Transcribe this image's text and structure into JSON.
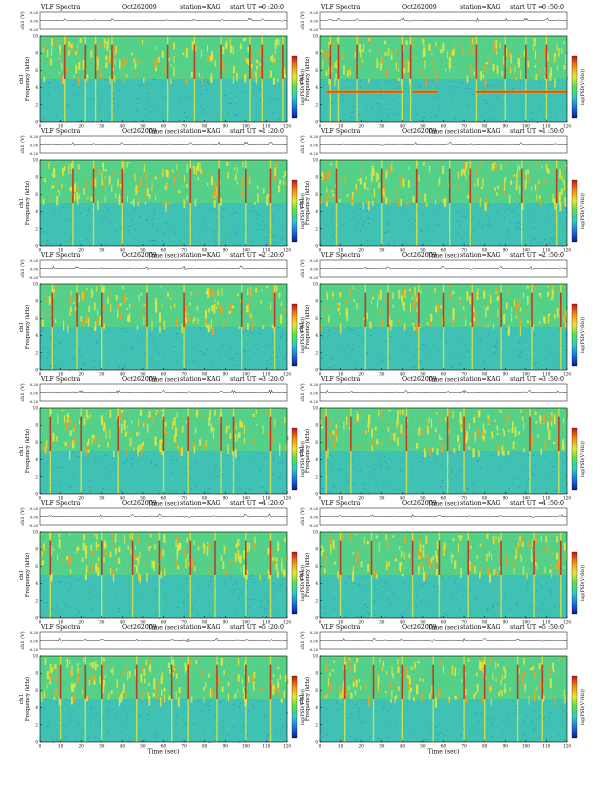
{
  "page": {
    "title_prefix": "VLF Spectra",
    "date": "Oct262009",
    "station": "station=KAG",
    "start_prefix": "start UT ="
  },
  "axis_labels": {
    "time": "Time (sec)",
    "frequency": "Frequency (kHz)",
    "channel": "ch1",
    "amplitude": "ch1 (V)",
    "colorbar": "log(PSD(V²/Hz))"
  },
  "colors": {
    "background_field": "#3fc2b4",
    "speckle_blue": "#2a7fd6",
    "speckle_green": "#5ed47a",
    "band_yellow": "#e6e639",
    "band_orange": "#f0a020",
    "band_red": "#c0201a",
    "colorbar_stops": [
      "#0a1a8a",
      "#1e6ee0",
      "#33c7c7",
      "#55dd55",
      "#e6e639",
      "#f08a1a",
      "#c0141a"
    ]
  },
  "chart_data": [
    {
      "type": "heatmap",
      "start_ut": "0 :20:0",
      "xlim": [
        0,
        120
      ],
      "ylim_khz": [
        0,
        10
      ],
      "amp_ylim_v": [
        -0.2,
        0.2
      ],
      "xticks": [
        0,
        10,
        20,
        30,
        40,
        50,
        60,
        70,
        80,
        90,
        100,
        110,
        120
      ],
      "yticks": [
        0,
        2,
        4,
        6,
        8,
        10
      ],
      "amp_ticks": [
        "0.20",
        "0.00",
        "-0.20"
      ],
      "emission_band_khz": [
        5,
        10
      ],
      "strong_bursts_sec": [
        12,
        22,
        27,
        35,
        62,
        75,
        88,
        102,
        108,
        118
      ],
      "tone_khz": null,
      "tone_sec": []
    },
    {
      "type": "heatmap",
      "start_ut": "0 :50:0",
      "xlim": [
        0,
        120
      ],
      "ylim_khz": [
        0,
        10
      ],
      "amp_ylim_v": [
        -0.2,
        0.2
      ],
      "xticks": [
        0,
        10,
        20,
        30,
        40,
        50,
        60,
        70,
        80,
        90,
        100,
        110,
        120
      ],
      "yticks": [
        0,
        2,
        4,
        6,
        8,
        10
      ],
      "amp_ticks": [
        "0.20",
        "0.00",
        "-0.20"
      ],
      "emission_band_khz": [
        5,
        10
      ],
      "strong_bursts_sec": [
        5,
        9,
        18,
        40,
        44,
        76,
        90,
        100,
        110
      ],
      "tone_khz": 3.5,
      "tone_sec": [
        [
          3,
          40
        ],
        [
          45,
          57
        ],
        [
          76,
          120
        ]
      ]
    },
    {
      "type": "heatmap",
      "start_ut": "1 :20:0",
      "xlim": [
        0,
        120
      ],
      "ylim_khz": [
        0,
        10
      ],
      "amp_ylim_v": [
        -0.2,
        0.2
      ],
      "xticks": [
        0,
        10,
        20,
        30,
        40,
        50,
        60,
        70,
        80,
        90,
        100,
        110,
        120
      ],
      "yticks": [
        0,
        2,
        4,
        6,
        8,
        10
      ],
      "amp_ticks": [
        "0.20",
        "0.00",
        "-0.20"
      ],
      "emission_band_khz": [
        5,
        10
      ],
      "strong_bursts_sec": [
        16,
        26,
        40,
        73,
        87,
        100,
        112
      ],
      "tone_khz": null,
      "tone_sec": []
    },
    {
      "type": "heatmap",
      "start_ut": "1 :50:0",
      "xlim": [
        0,
        120
      ],
      "ylim_khz": [
        0,
        10
      ],
      "amp_ylim_v": [
        -0.2,
        0.2
      ],
      "xticks": [
        0,
        10,
        20,
        30,
        40,
        50,
        60,
        70,
        80,
        90,
        100,
        110,
        120
      ],
      "yticks": [
        0,
        2,
        4,
        6,
        8,
        10
      ],
      "amp_ticks": [
        "0.20",
        "0.00",
        "-0.20"
      ],
      "emission_band_khz": [
        5,
        10
      ],
      "strong_bursts_sec": [
        8,
        30,
        47,
        63,
        73,
        98,
        115
      ],
      "tone_khz": null,
      "tone_sec": []
    },
    {
      "type": "heatmap",
      "start_ut": "2 :20:0",
      "xlim": [
        0,
        120
      ],
      "ylim_khz": [
        0,
        10
      ],
      "amp_ylim_v": [
        -0.2,
        0.2
      ],
      "xticks": [
        0,
        10,
        20,
        30,
        40,
        50,
        60,
        70,
        80,
        90,
        100,
        110,
        120
      ],
      "yticks": [
        0,
        2,
        4,
        6,
        8,
        10
      ],
      "amp_ticks": [
        "0.20",
        "0.00",
        "-0.20"
      ],
      "emission_band_khz": [
        5,
        10
      ],
      "strong_bursts_sec": [
        6,
        18,
        30,
        52,
        70,
        98,
        114
      ],
      "tone_khz": null,
      "tone_sec": []
    },
    {
      "type": "heatmap",
      "start_ut": "2 :50:0",
      "xlim": [
        0,
        120
      ],
      "ylim_khz": [
        0,
        10
      ],
      "amp_ylim_v": [
        -0.2,
        0.2
      ],
      "xticks": [
        0,
        10,
        20,
        30,
        40,
        50,
        60,
        70,
        80,
        90,
        100,
        110,
        120
      ],
      "yticks": [
        0,
        2,
        4,
        6,
        8,
        10
      ],
      "amp_ticks": [
        "0.20",
        "0.00",
        "-0.20"
      ],
      "emission_band_khz": [
        5,
        10
      ],
      "strong_bursts_sec": [
        22,
        33,
        48,
        60,
        74,
        88,
        103,
        117
      ],
      "tone_khz": null,
      "tone_sec": []
    },
    {
      "type": "heatmap",
      "start_ut": "3 :20:0",
      "xlim": [
        0,
        120
      ],
      "ylim_khz": [
        0,
        10
      ],
      "amp_ylim_v": [
        -0.2,
        0.2
      ],
      "xticks": [
        0,
        10,
        20,
        30,
        40,
        50,
        60,
        70,
        80,
        90,
        100,
        110,
        120
      ],
      "yticks": [
        0,
        2,
        4,
        6,
        8,
        10
      ],
      "amp_ticks": [
        "0.20",
        "0.00",
        "-0.20"
      ],
      "emission_band_khz": [
        5,
        10
      ],
      "strong_bursts_sec": [
        5,
        20,
        38,
        60,
        72,
        88,
        94,
        112
      ],
      "tone_khz": null,
      "tone_sec": []
    },
    {
      "type": "heatmap",
      "start_ut": "3 :50:0",
      "xlim": [
        0,
        120
      ],
      "ylim_khz": [
        0,
        10
      ],
      "amp_ylim_v": [
        -0.2,
        0.2
      ],
      "xticks": [
        0,
        10,
        20,
        30,
        40,
        50,
        60,
        70,
        80,
        90,
        100,
        110,
        120
      ],
      "yticks": [
        0,
        2,
        4,
        6,
        8,
        10
      ],
      "amp_ticks": [
        "0.20",
        "0.00",
        "-0.20"
      ],
      "emission_band_khz": [
        5,
        10
      ],
      "strong_bursts_sec": [
        3,
        15,
        42,
        62,
        70,
        102,
        116
      ],
      "tone_khz": null,
      "tone_sec": []
    },
    {
      "type": "heatmap",
      "start_ut": "4 :20:0",
      "xlim": [
        0,
        120
      ],
      "ylim_khz": [
        0,
        10
      ],
      "amp_ylim_v": [
        -0.2,
        0.2
      ],
      "xticks": [
        0,
        10,
        20,
        30,
        40,
        50,
        60,
        70,
        80,
        90,
        100,
        110,
        120
      ],
      "yticks": [
        0,
        2,
        4,
        6,
        8,
        10
      ],
      "amp_ticks": [
        "0.20",
        "0.00",
        "-0.20"
      ],
      "emission_band_khz": [
        5,
        10
      ],
      "strong_bursts_sec": [
        5,
        30,
        45,
        58,
        73,
        85,
        100,
        112
      ],
      "tone_khz": null,
      "tone_sec": []
    },
    {
      "type": "heatmap",
      "start_ut": "4 :50:0",
      "xlim": [
        0,
        120
      ],
      "ylim_khz": [
        0,
        10
      ],
      "amp_ylim_v": [
        -0.2,
        0.2
      ],
      "xticks": [
        0,
        10,
        20,
        30,
        40,
        50,
        60,
        70,
        80,
        90,
        100,
        110,
        120
      ],
      "yticks": [
        0,
        2,
        4,
        6,
        8,
        10
      ],
      "amp_ticks": [
        "0.20",
        "0.00",
        "-0.20"
      ],
      "emission_band_khz": [
        5,
        10
      ],
      "strong_bursts_sec": [
        10,
        25,
        45,
        58,
        72,
        88,
        104,
        117
      ],
      "tone_khz": null,
      "tone_sec": []
    },
    {
      "type": "heatmap",
      "start_ut": "5 :20:0",
      "xlim": [
        0,
        120
      ],
      "ylim_khz": [
        0,
        10
      ],
      "amp_ylim_v": [
        -0.2,
        0.2
      ],
      "xticks": [
        0,
        10,
        20,
        30,
        40,
        50,
        60,
        70,
        80,
        90,
        100,
        110,
        120
      ],
      "yticks": [
        0,
        2,
        4,
        6,
        8,
        10
      ],
      "amp_ticks": [
        "0.20",
        "0.00",
        "-0.20"
      ],
      "emission_band_khz": [
        5,
        10
      ],
      "strong_bursts_sec": [
        10,
        22,
        30,
        47,
        64,
        72,
        86,
        100,
        112
      ],
      "tone_khz": null,
      "tone_sec": []
    },
    {
      "type": "heatmap",
      "start_ut": "5 :50:0",
      "xlim": [
        0,
        120
      ],
      "ylim_khz": [
        0,
        10
      ],
      "amp_ylim_v": [
        -0.2,
        0.2
      ],
      "xticks": [
        0,
        10,
        20,
        30,
        40,
        50,
        60,
        70,
        80,
        90,
        100,
        110,
        120
      ],
      "yticks": [
        0,
        2,
        4,
        6,
        8,
        10
      ],
      "amp_ticks": [
        "0.20",
        "0.00",
        "-0.20"
      ],
      "emission_band_khz": [
        5,
        10
      ],
      "strong_bursts_sec": [
        12,
        26,
        40,
        55,
        70,
        80,
        96,
        108
      ],
      "tone_khz": null,
      "tone_sec": []
    }
  ]
}
